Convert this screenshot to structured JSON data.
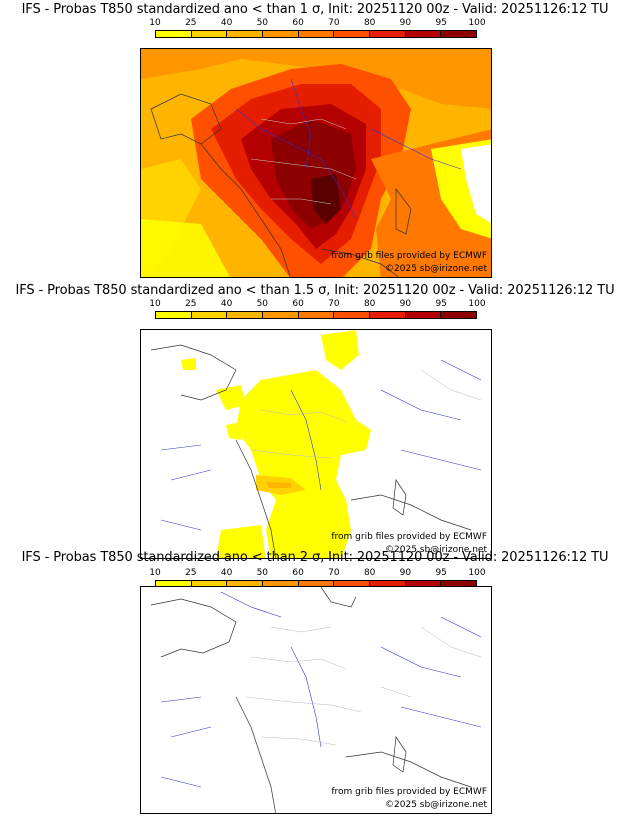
{
  "scale": {
    "labels": [
      "10",
      "25",
      "40",
      "50",
      "60",
      "70",
      "80",
      "90",
      "95",
      "100"
    ],
    "colors": [
      "#ffff00",
      "#ffd200",
      "#ffb400",
      "#ff9600",
      "#ff7800",
      "#ff5000",
      "#e61e00",
      "#b40000",
      "#8c0000",
      "#5a0000"
    ]
  },
  "credits": {
    "source": "from grib files provided by ECMWF",
    "copyright": "©2025 sb@irizone.net"
  },
  "panels": [
    {
      "title": "IFS - Probas T850  standardized ano < than 1 σ, Init: 20251120 00z - Valid: 20251126:12 TU"
    },
    {
      "title": "IFS - Probas T850  standardized ano < than 1.5 σ, Init: 20251120 00z - Valid: 20251126:12 TU"
    },
    {
      "title": "IFS - Probas T850  standardized ano < than 2 σ, Init: 20251120 00z - Valid: 20251126:12 TU"
    }
  ]
}
